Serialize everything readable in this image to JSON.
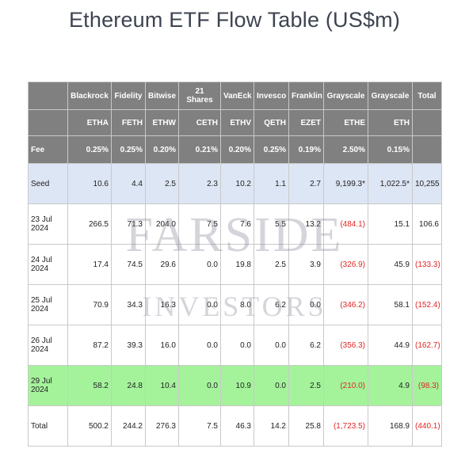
{
  "title": "Ethereum ETF Flow Table (US$m)",
  "watermark": {
    "line1": "FARSIDE",
    "line2": "INVESTORS"
  },
  "table": {
    "issuers": [
      "",
      "Blackrock",
      "Fidelity",
      "Bitwise",
      "21 Shares",
      "VanEck",
      "Invesco",
      "Franklin",
      "Grayscale",
      "Grayscale",
      "Total"
    ],
    "tickers": [
      "",
      "ETHA",
      "FETH",
      "ETHW",
      "CETH",
      "ETHV",
      "QETH",
      "EZET",
      "ETHE",
      "ETH",
      ""
    ],
    "fees": [
      "Fee",
      "0.25%",
      "0.25%",
      "0.20%",
      "0.21%",
      "0.20%",
      "0.25%",
      "0.19%",
      "2.50%",
      "0.15%",
      ""
    ],
    "seed": [
      "Seed",
      "10.6",
      "4.4",
      "2.5",
      "2.3",
      "10.2",
      "1.1",
      "2.7",
      "9,199.3*",
      "1,022.5*",
      "10,255"
    ],
    "rows": [
      [
        "23 Jul 2024",
        "266.5",
        "71.3",
        "204.0",
        "7.5",
        "7.6",
        "5.5",
        "13.2",
        "(484.1)",
        "15.1",
        "106.6"
      ],
      [
        "24 Jul 2024",
        "17.4",
        "74.5",
        "29.6",
        "0.0",
        "19.8",
        "2.5",
        "3.9",
        "(326.9)",
        "45.9",
        "(133.3)"
      ],
      [
        "25 Jul 2024",
        "70.9",
        "34.3",
        "16.3",
        "0.0",
        "8.0",
        "6.2",
        "0.0",
        "(346.2)",
        "58.1",
        "(152.4)"
      ],
      [
        "26 Jul 2024",
        "87.2",
        "39.3",
        "16.0",
        "0.0",
        "0.0",
        "0.0",
        "6.2",
        "(356.3)",
        "44.9",
        "(162.7)"
      ],
      [
        "29 Jul 2024",
        "58.2",
        "24.8",
        "10.4",
        "0.0",
        "10.9",
        "0.0",
        "2.5",
        "(210.0)",
        "4.9",
        "(98.3)"
      ]
    ],
    "total": [
      "Total",
      "500.2",
      "244.2",
      "276.3",
      "7.5",
      "46.3",
      "14.2",
      "25.8",
      "(1,723.5)",
      "168.9",
      "(440.1)"
    ]
  },
  "colors": {
    "header_bg": "#808080",
    "seed_bg": "#dde6f5",
    "highlight_bg": "#a4f39b",
    "negative": "#e02525"
  }
}
